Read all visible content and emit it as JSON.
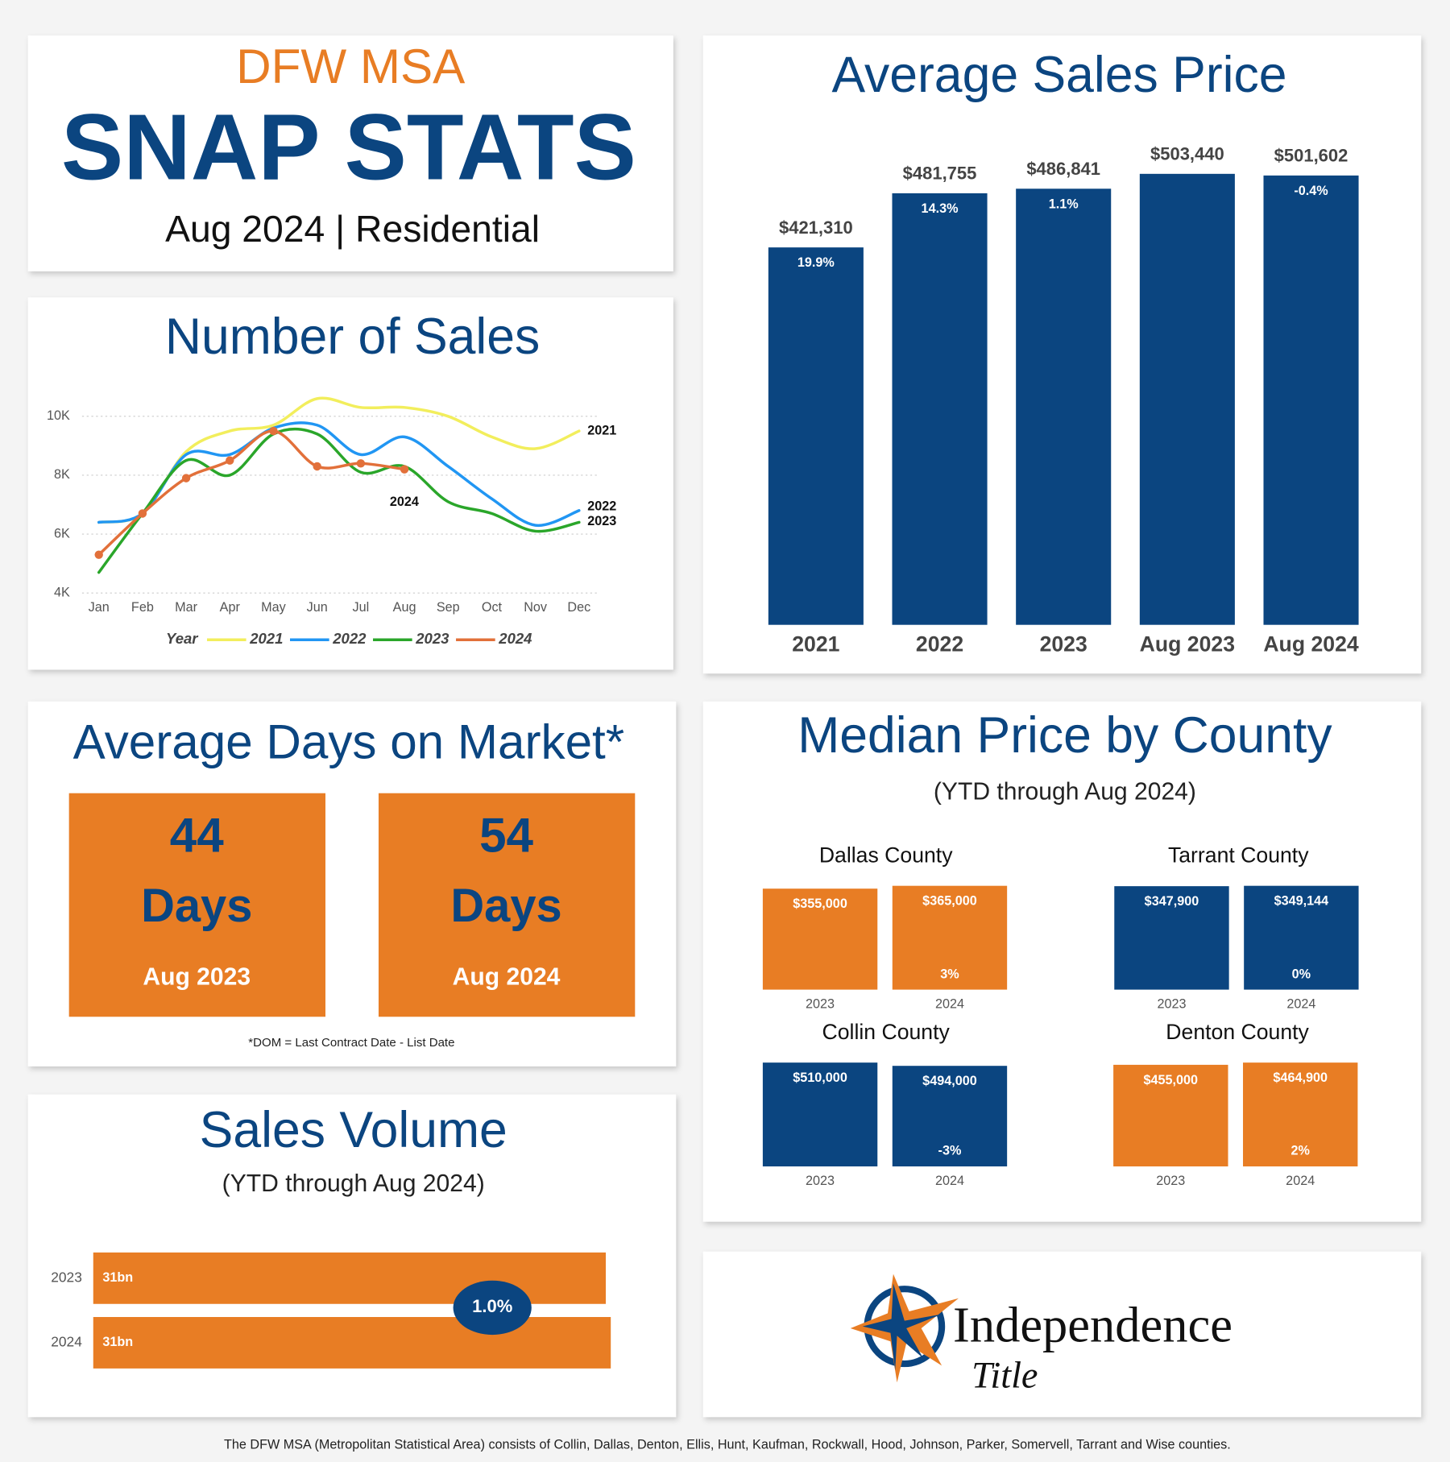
{
  "header": {
    "region": "DFW MSA",
    "title": "SNAP STATS",
    "subtitle": "Aug 2024 | Residential"
  },
  "days_on_market": {
    "title": "Average Days on Market*",
    "cards": [
      {
        "value": 44,
        "unit": "Days",
        "label": "Aug 2023"
      },
      {
        "value": 54,
        "unit": "Days",
        "label": "Aug 2024"
      }
    ],
    "footnote": "*DOM = Last Contract Date - List Date"
  },
  "logo": {
    "name": "Independence",
    "tagline": "Title"
  },
  "footer": "The DFW MSA (Metropolitan Statistical Area) consists of Collin, Dallas, Denton, Ellis, Hunt, Kaufman, Rockwall, Hood, Johnson, Parker, Somervell, Tarrant and Wise counties.",
  "chart_data": [
    {
      "type": "line",
      "title": "Number of Sales",
      "categories": [
        "Jan",
        "Feb",
        "Mar",
        "Apr",
        "May",
        "Jun",
        "Jul",
        "Aug",
        "Sep",
        "Oct",
        "Nov",
        "Dec"
      ],
      "legend_title": "Year",
      "series": [
        {
          "name": "2021",
          "color": "#f2ee5c",
          "values": [
            6400,
            6700,
            8800,
            9500,
            9700,
            10600,
            10300,
            10300,
            10000,
            9300,
            8900,
            9500
          ]
        },
        {
          "name": "2022",
          "color": "#2196f3",
          "values": [
            6400,
            6700,
            8700,
            8700,
            9600,
            9700,
            8700,
            9300,
            8300,
            7200,
            6300,
            6800
          ]
        },
        {
          "name": "2023",
          "color": "#2aa62a",
          "values": [
            4700,
            6700,
            8500,
            8000,
            9400,
            9400,
            8100,
            8300,
            7100,
            6700,
            6100,
            6400
          ]
        },
        {
          "name": "2024",
          "color": "#e2703a",
          "values": [
            5300,
            6700,
            7900,
            8500,
            9500,
            8300,
            8400,
            8200,
            null,
            null,
            null,
            null
          ],
          "markers": true
        }
      ],
      "ylim": [
        4000,
        10700
      ],
      "yticks": [
        {
          "value": 4000,
          "label": "4K"
        },
        {
          "value": 6000,
          "label": "6K"
        },
        {
          "value": 8000,
          "label": "8K"
        },
        {
          "value": 10000,
          "label": "10K"
        }
      ],
      "grid": true
    },
    {
      "type": "bar",
      "title": "Average Sales Price",
      "categories": [
        "2021",
        "2022",
        "2023",
        "Aug 2023",
        "Aug 2024"
      ],
      "values": [
        421310,
        481755,
        486841,
        503440,
        501602
      ],
      "value_labels": [
        "$421,310",
        "$481,755",
        "$486,841",
        "$503,440",
        "$501,602"
      ],
      "changes": [
        19.9,
        14.3,
        1.1,
        null,
        -0.4
      ],
      "change_labels": [
        "19.9%",
        "14.3%",
        "1.1%",
        null,
        "-0.4%"
      ],
      "color": "#0b4580",
      "ylim": [
        0,
        520000
      ]
    },
    {
      "type": "bar",
      "title": "Median Price by County",
      "subtitle": "(YTD through Aug 2024)",
      "groups": [
        {
          "name": "Dallas County",
          "color": "#e87d24",
          "categories": [
            "2023",
            "2024"
          ],
          "values": [
            355000,
            365000
          ],
          "value_labels": [
            "$355,000",
            "$365,000"
          ],
          "change": 3,
          "change_label": "3%",
          "ylim": [
            0,
            365000
          ]
        },
        {
          "name": "Tarrant County",
          "color": "#0b4580",
          "categories": [
            "2023",
            "2024"
          ],
          "values": [
            347900,
            349144
          ],
          "value_labels": [
            "$347,900",
            "$349,144"
          ],
          "change": 0,
          "change_label": "0%",
          "ylim": [
            0,
            349144
          ]
        },
        {
          "name": "Collin County",
          "color": "#0b4580",
          "categories": [
            "2023",
            "2024"
          ],
          "values": [
            510000,
            494000
          ],
          "value_labels": [
            "$510,000",
            "$494,000"
          ],
          "change": -3,
          "change_label": "-3%",
          "ylim": [
            0,
            510000
          ]
        },
        {
          "name": "Denton County",
          "color": "#e87d24",
          "categories": [
            "2023",
            "2024"
          ],
          "values": [
            455000,
            464900
          ],
          "value_labels": [
            "$455,000",
            "$464,900"
          ],
          "change": 2,
          "change_label": "2%",
          "ylim": [
            0,
            464900
          ]
        }
      ]
    },
    {
      "type": "bar",
      "orientation": "horizontal",
      "title": "Sales Volume",
      "subtitle": "(YTD through Aug 2024)",
      "categories": [
        "2023",
        "2024"
      ],
      "values": [
        30800000000,
        31100000000
      ],
      "value_labels": [
        "31bn",
        "31bn"
      ],
      "color": "#e87d24",
      "xlim": [
        0,
        31100000000
      ],
      "change": 1.0,
      "change_label": "1.0%"
    }
  ]
}
